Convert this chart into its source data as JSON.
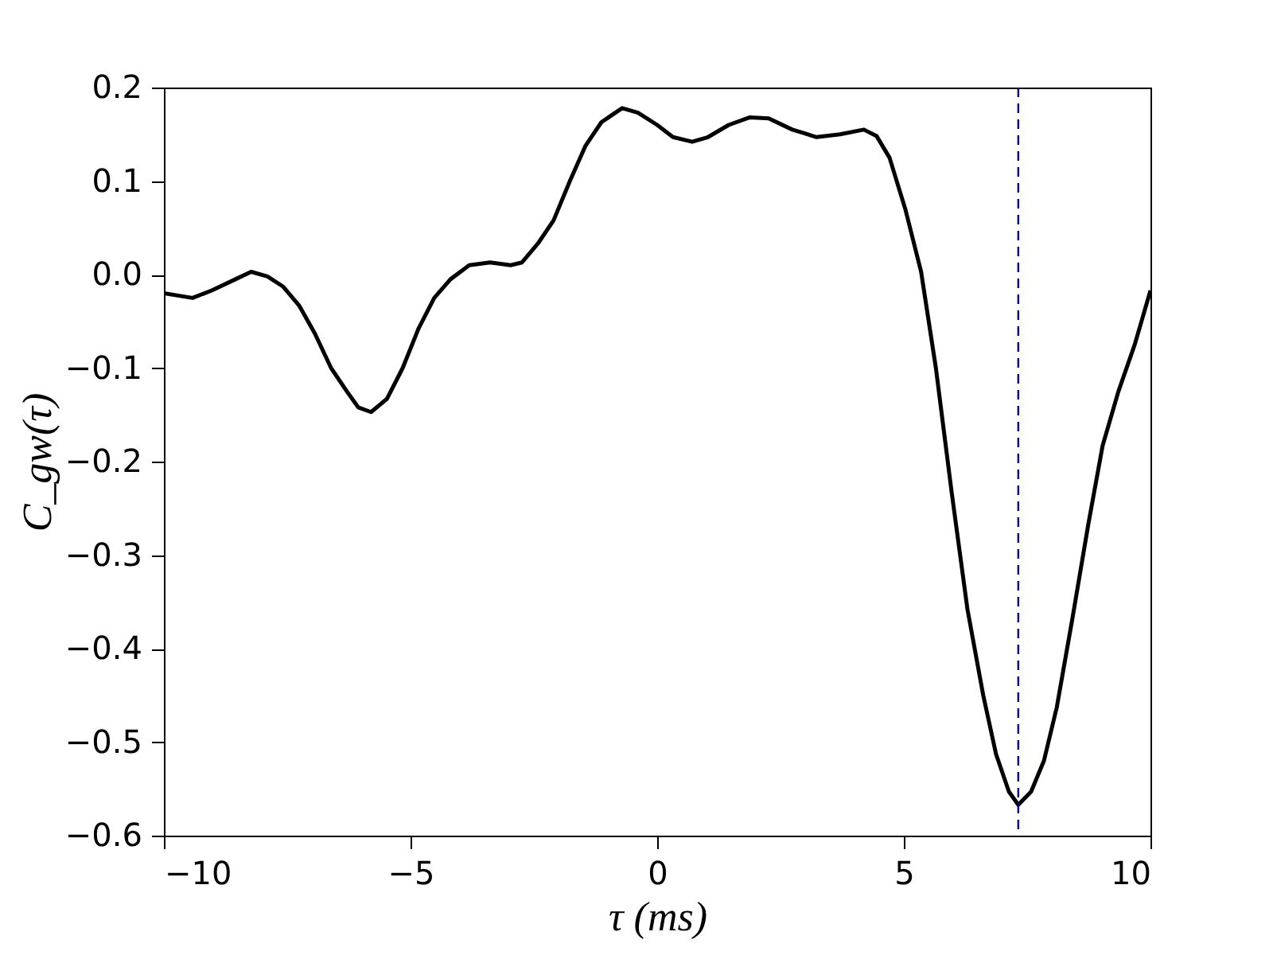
{
  "chart_data": {
    "type": "line",
    "xlabel": "τ (ms)",
    "ylabel": "C_gw(τ)",
    "x": [
      -10,
      -9.42,
      -9.03,
      -8.55,
      -8.23,
      -7.9,
      -7.58,
      -7.26,
      -6.94,
      -6.61,
      -6.29,
      -6.06,
      -5.8,
      -5.48,
      -5.16,
      -4.84,
      -4.52,
      -4.19,
      -3.81,
      -3.39,
      -2.97,
      -2.74,
      -2.42,
      -2.1,
      -1.77,
      -1.45,
      -1.13,
      -0.71,
      -0.39,
      0,
      0.32,
      0.71,
      1.03,
      1.45,
      1.87,
      2.26,
      2.74,
      3.23,
      3.71,
      4.19,
      4.45,
      4.71,
      5.03,
      5.35,
      5.65,
      5.97,
      6.29,
      6.61,
      6.87,
      7.13,
      7.32,
      7.58,
      7.84,
      8.1,
      8.42,
      8.74,
      9.03,
      9.35,
      9.68,
      10
    ],
    "series": [
      {
        "color": "#000000",
        "values": [
          -0.02,
          -0.025,
          -0.017,
          -0.005,
          0.003,
          -0.002,
          -0.013,
          -0.033,
          -0.063,
          -0.1,
          -0.125,
          -0.142,
          -0.147,
          -0.133,
          -0.1,
          -0.058,
          -0.025,
          -0.005,
          0.01,
          0.013,
          0.01,
          0.013,
          0.033,
          0.058,
          0.1,
          0.138,
          0.163,
          0.178,
          0.173,
          0.16,
          0.147,
          0.142,
          0.147,
          0.16,
          0.168,
          0.167,
          0.155,
          0.147,
          0.15,
          0.155,
          0.148,
          0.125,
          0.07,
          0.003,
          -0.1,
          -0.233,
          -0.358,
          -0.45,
          -0.513,
          -0.553,
          -0.567,
          -0.553,
          -0.52,
          -0.463,
          -0.367,
          -0.267,
          -0.183,
          -0.125,
          -0.075,
          -0.017
        ]
      }
    ],
    "xlim": [
      -10,
      10
    ],
    "xticks": [
      {
        "value": -10,
        "label": "−10"
      },
      {
        "value": -5,
        "label": "−5"
      },
      {
        "value": 0,
        "label": "0"
      },
      {
        "value": 5,
        "label": "5"
      },
      {
        "value": 10,
        "label": "10"
      }
    ],
    "ylim": [
      -0.6,
      0.2
    ],
    "yticks": [
      {
        "value": -0.6,
        "label": "−0.6"
      },
      {
        "value": -0.5,
        "label": "−0.5"
      },
      {
        "value": -0.4,
        "label": "−0.4"
      },
      {
        "value": -0.3,
        "label": "−0.3"
      },
      {
        "value": -0.2,
        "label": "−0.2"
      },
      {
        "value": -0.1,
        "label": "−0.1"
      },
      {
        "value": 0,
        "label": "0.0"
      },
      {
        "value": 0.1,
        "label": "0.1"
      },
      {
        "value": 0.2,
        "label": "0.2"
      }
    ],
    "ref_lines": [
      {
        "axis": "x",
        "value": 7.32,
        "color": "#00008b",
        "line_style": "dashed"
      }
    ],
    "grid": false,
    "marker": "none",
    "line_style": "solid"
  }
}
